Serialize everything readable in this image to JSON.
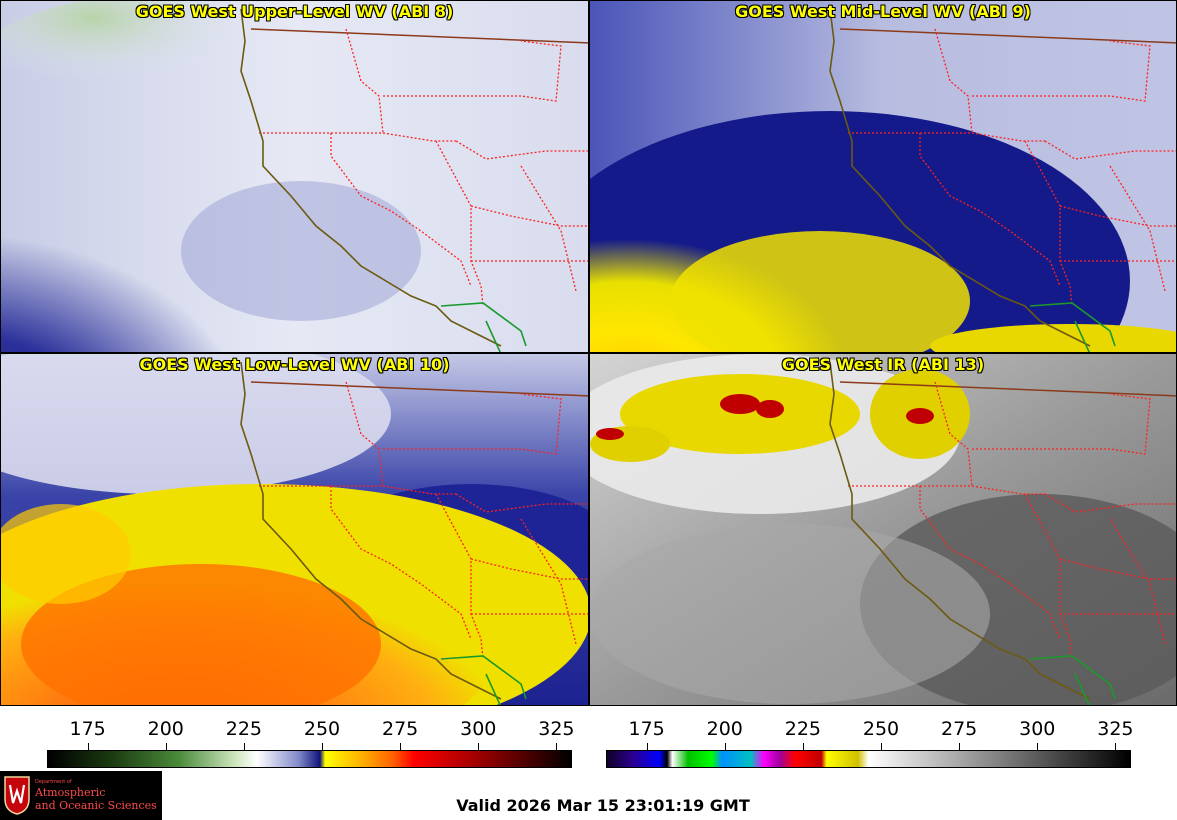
{
  "panels": [
    {
      "title": "GOES West Upper-Level WV (ABI 8)",
      "palette": "upper"
    },
    {
      "title": "GOES West Mid-Level WV (ABI 9)",
      "palette": "mid"
    },
    {
      "title": "GOES West Low-Level WV (ABI 10)",
      "palette": "low"
    },
    {
      "title": "GOES West IR (ABI 13)",
      "palette": "ir"
    }
  ],
  "colorbar_wv": {
    "ticks": [
      "175",
      "200",
      "225",
      "250",
      "275",
      "300",
      "325"
    ],
    "min": 162,
    "max": 330
  },
  "colorbar_ir": {
    "ticks": [
      "175",
      "200",
      "225",
      "250",
      "275",
      "300",
      "325"
    ],
    "min": 162,
    "max": 330
  },
  "logo": {
    "dept": "Department of",
    "line1": "Atmospheric",
    "line2": "and Oceanic Sciences"
  },
  "valid_time": "Valid 2026 Mar 15 23:01:19 GMT",
  "colors": {
    "coast": "#6b5a10",
    "state_border": "#ff2020",
    "intl_border": "#8b3a1a",
    "mexico_coast": "#1a9a2a",
    "title": "#ffff00"
  }
}
